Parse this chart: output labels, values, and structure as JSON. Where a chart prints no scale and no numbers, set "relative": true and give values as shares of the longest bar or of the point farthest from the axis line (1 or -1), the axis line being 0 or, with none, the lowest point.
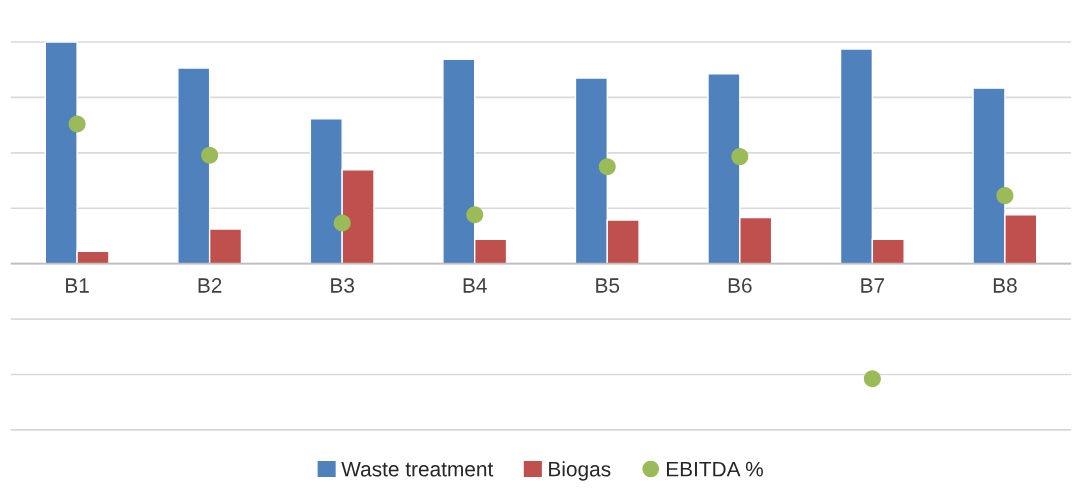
{
  "chart_data": {
    "type": "bar",
    "relative": true,
    "grid": "y",
    "legend": "bottom",
    "categories": [
      "B1",
      "B2",
      "B3",
      "B4",
      "B5",
      "B6",
      "B7",
      "B8"
    ],
    "series": [
      {
        "name": "Waste treatment",
        "color": "#4f81bd",
        "values": [
          1,
          0.883,
          0.654,
          0.922,
          0.838,
          0.857,
          0.968,
          0.792
        ]
      },
      {
        "name": "Biogas",
        "color": "#c0504d",
        "values": [
          0.056,
          0.156,
          0.424,
          0.11,
          0.197,
          0.208,
          0.11,
          0.221
        ]
      },
      {
        "name": "EBITDA %",
        "color": "#9bbb59",
        "type": "scatter",
        "marker": "circle",
        "values": [
          0.63,
          0.489,
          0.184,
          0.221,
          0.437,
          0.483,
          -0.519,
          0.307
        ]
      }
    ]
  }
}
